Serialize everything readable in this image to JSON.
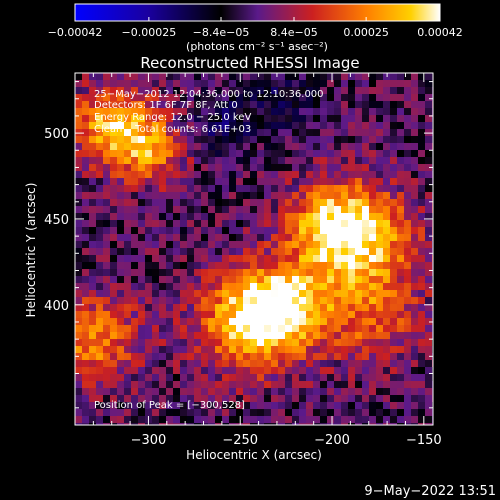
{
  "chart_data": {
    "type": "heatmap",
    "title": "Reconstructed RHESSI Image",
    "xlabel": "Heliocentric X (arcsec)",
    "ylabel": "Heliocentric Y (arcsec)",
    "xlim": [
      -340,
      -145
    ],
    "ylim": [
      330,
      535
    ],
    "x_ticks": [
      -300,
      -250,
      -200,
      -150
    ],
    "x_tick_labels": [
      "−300",
      "−250",
      "−200",
      "−150"
    ],
    "y_ticks": [
      400,
      450,
      500
    ],
    "y_tick_labels": [
      "400",
      "450",
      "500"
    ],
    "colorbar": {
      "min": -0.00042,
      "max": 0.00042,
      "ticks": [
        -0.00042,
        -0.00025,
        -8.4e-05,
        8.4e-05,
        0.00025,
        0.00042
      ],
      "tick_labels": [
        "−0.00042",
        "−0.00025",
        "−8.4e−05",
        "8.4e−05",
        "0.00025",
        "0.00042"
      ],
      "unit_label": "(photons cm⁻² s⁻¹ asec⁻²)",
      "colors": [
        "#0000ff",
        "#1a00a0",
        "#000000",
        "#5a1a8a",
        "#cc2020",
        "#ff8000",
        "#ffd000",
        "#ffffff"
      ]
    },
    "annotations": {
      "time_range": "25−May−2012 12:04:36.000 to 12:10:36.000",
      "detectors": "Detectors: 1F 6F 7F 8F, Att 0",
      "energy_range": "Energy Range: 12.0 − 25.0 keV",
      "method": "Clean    Total counts: 6.61E+03",
      "peak": "Position of Peak = [−300,528]"
    },
    "footer_date": "9−May−2022 13:51"
  }
}
